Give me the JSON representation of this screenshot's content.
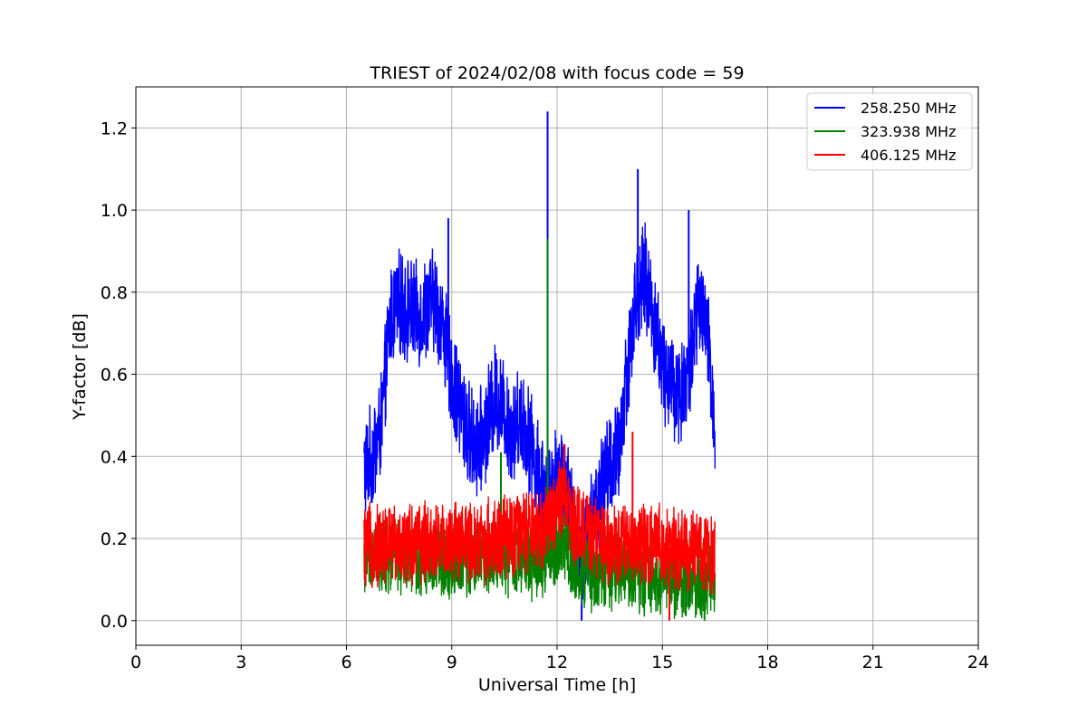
{
  "chart_data": {
    "type": "line",
    "title": "TRIEST of 2024/02/08 with focus code = 59",
    "xlabel": "Universal Time [h]",
    "ylabel": "Y-factor [dB]",
    "xlim": [
      0,
      24
    ],
    "ylim": [
      -0.06,
      1.3
    ],
    "x_ticks": [
      0,
      3,
      6,
      9,
      12,
      15,
      18,
      21,
      24
    ],
    "y_ticks": [
      0.0,
      0.2,
      0.4,
      0.6,
      0.8,
      1.0,
      1.2
    ],
    "grid": true,
    "legend_position": "top-right",
    "series": [
      {
        "name": "258.250 MHz",
        "color": "#0000ff",
        "x": [
          6.5,
          6.75,
          7.0,
          7.25,
          7.5,
          7.75,
          8.0,
          8.25,
          8.5,
          8.75,
          9.0,
          9.25,
          9.5,
          9.75,
          10.0,
          10.25,
          10.5,
          10.75,
          11.0,
          11.25,
          11.5,
          11.75,
          12.0,
          12.25,
          12.5,
          12.75,
          13.0,
          13.25,
          13.5,
          13.75,
          14.0,
          14.25,
          14.5,
          14.75,
          15.0,
          15.25,
          15.5,
          15.75,
          16.0,
          16.25,
          16.5
        ],
        "y": [
          0.37,
          0.4,
          0.48,
          0.74,
          0.77,
          0.76,
          0.74,
          0.76,
          0.78,
          0.72,
          0.58,
          0.52,
          0.45,
          0.42,
          0.48,
          0.55,
          0.51,
          0.46,
          0.5,
          0.43,
          0.35,
          0.3,
          0.37,
          0.34,
          0.2,
          0.15,
          0.24,
          0.32,
          0.38,
          0.4,
          0.62,
          0.78,
          0.84,
          0.74,
          0.62,
          0.58,
          0.55,
          0.6,
          0.76,
          0.72,
          0.47
        ],
        "noise": 0.07,
        "spikes": [
          {
            "x": 11.73,
            "y": 1.24
          },
          {
            "x": 14.3,
            "y": 1.1
          },
          {
            "x": 15.75,
            "y": 1.0
          },
          {
            "x": 8.9,
            "y": 0.98
          },
          {
            "x": 12.7,
            "y": 0.0
          }
        ]
      },
      {
        "name": "323.938 MHz",
        "color": "#008000",
        "x": [
          6.5,
          7.5,
          8.5,
          9.5,
          10.5,
          11.0,
          11.5,
          11.75,
          12.0,
          12.2,
          12.5,
          13.0,
          13.5,
          14.0,
          14.5,
          15.0,
          15.5,
          16.0,
          16.5
        ],
        "y": [
          0.16,
          0.15,
          0.15,
          0.15,
          0.15,
          0.15,
          0.14,
          0.16,
          0.17,
          0.2,
          0.12,
          0.11,
          0.12,
          0.12,
          0.11,
          0.11,
          0.1,
          0.1,
          0.11
        ],
        "noise": 0.05,
        "spikes": [
          {
            "x": 11.73,
            "y": 0.93
          },
          {
            "x": 10.4,
            "y": 0.41
          },
          {
            "x": 16.2,
            "y": 0.0
          }
        ]
      },
      {
        "name": "406.125 MHz",
        "color": "#ff0000",
        "x": [
          6.5,
          7.5,
          8.5,
          9.5,
          10.5,
          11.0,
          11.5,
          11.75,
          12.0,
          12.25,
          12.5,
          13.0,
          13.5,
          14.0,
          14.5,
          15.0,
          15.5,
          16.0,
          16.5
        ],
        "y": [
          0.18,
          0.19,
          0.19,
          0.19,
          0.2,
          0.21,
          0.22,
          0.25,
          0.29,
          0.28,
          0.24,
          0.2,
          0.19,
          0.19,
          0.18,
          0.18,
          0.17,
          0.17,
          0.17
        ],
        "noise": 0.055,
        "spikes": [
          {
            "x": 14.15,
            "y": 0.46
          },
          {
            "x": 12.2,
            "y": 0.43
          },
          {
            "x": 15.2,
            "y": 0.0
          }
        ]
      }
    ]
  }
}
